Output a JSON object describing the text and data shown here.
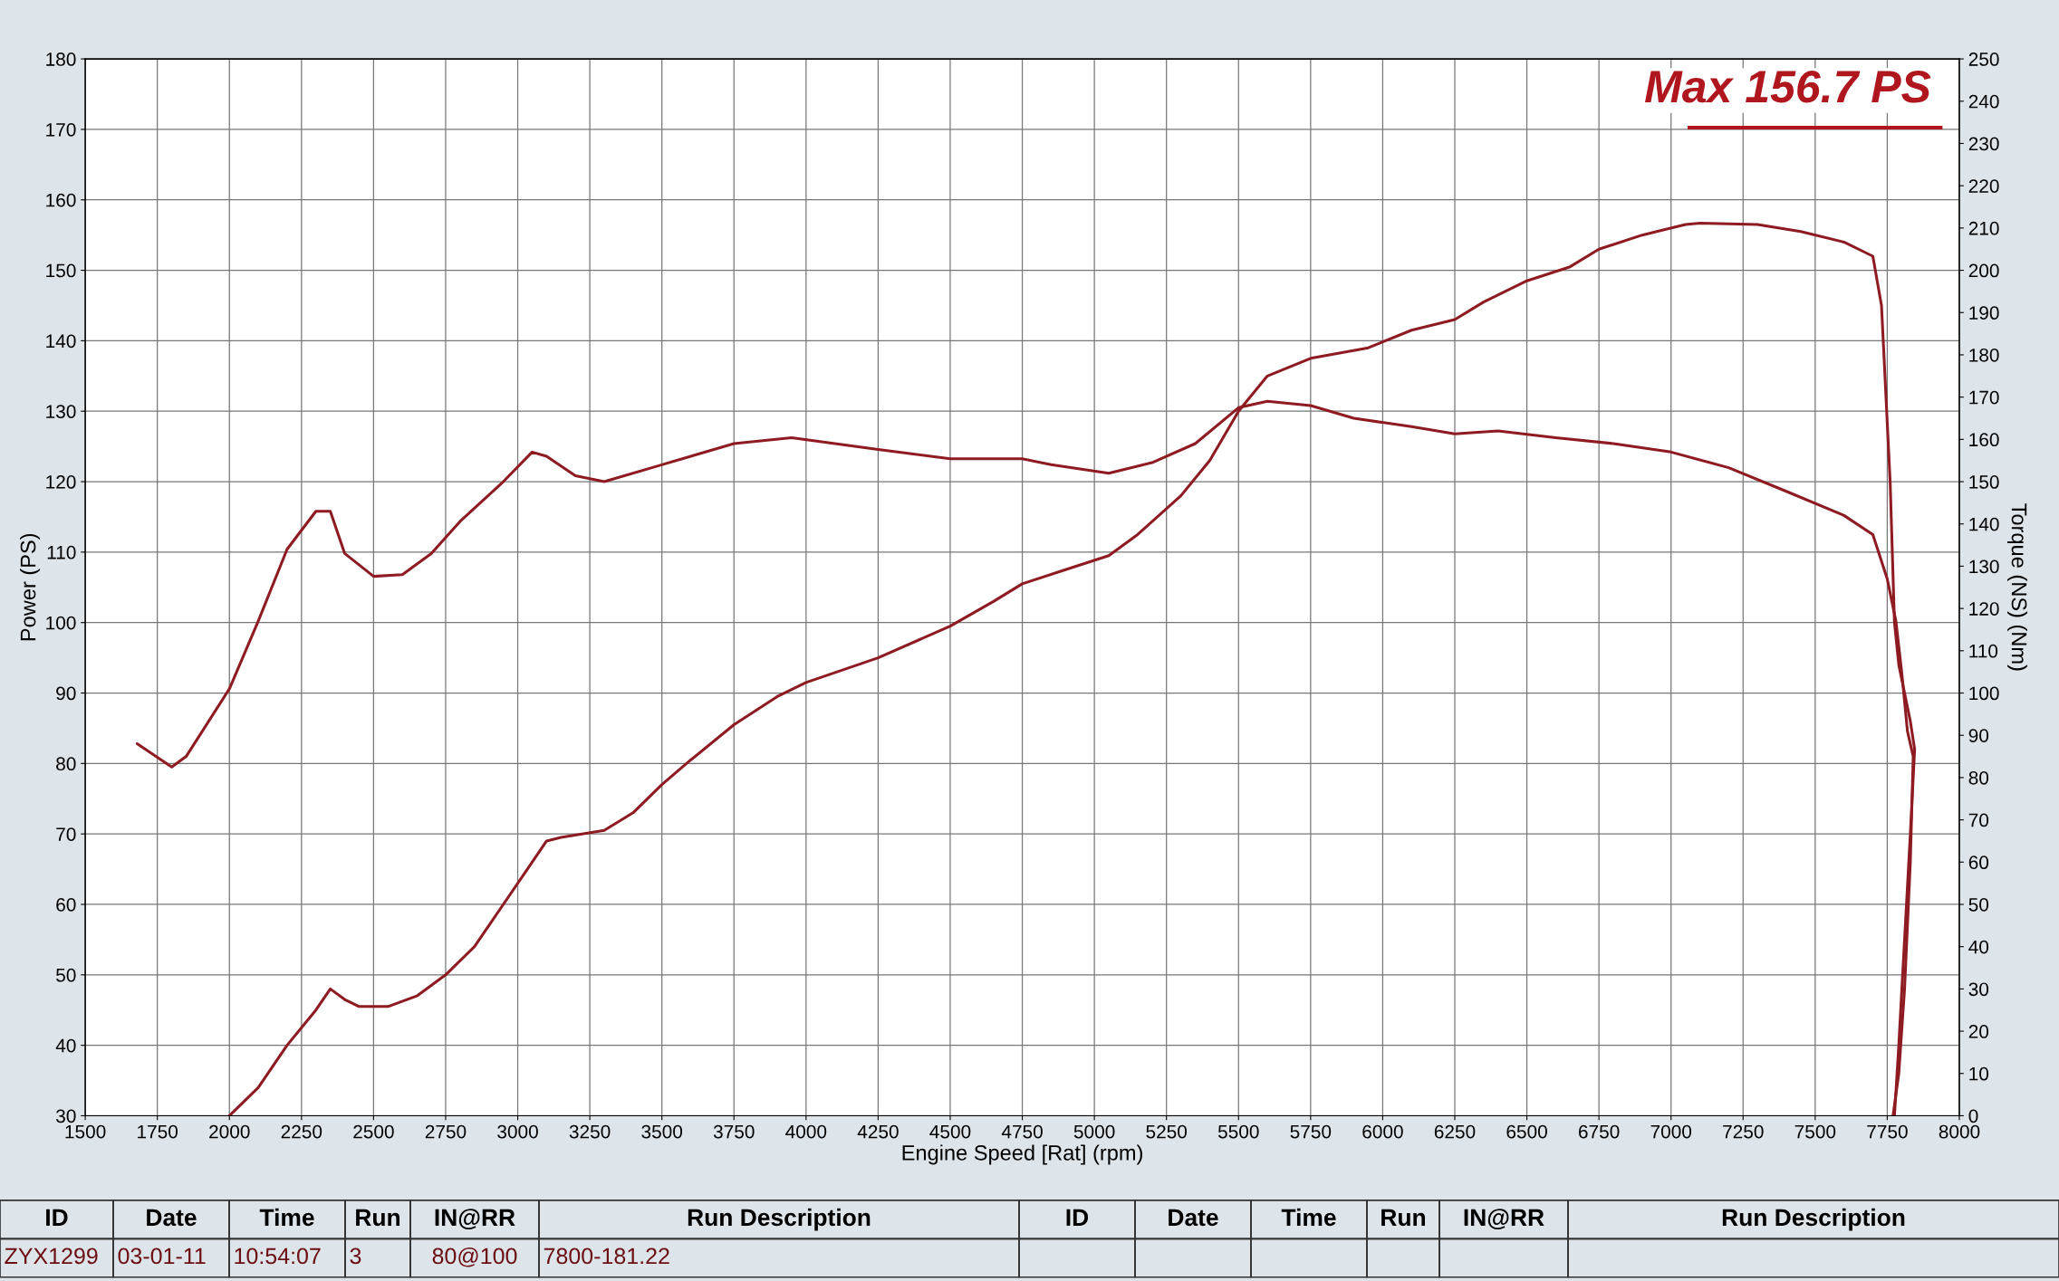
{
  "chart_data": {
    "type": "line",
    "xlabel": "Engine Speed [Rat] (rpm)",
    "ylabel": "Power (PS)",
    "y2label": "Torque (NS) (Nm)",
    "xlim": [
      1500,
      8000
    ],
    "xticks": [
      1500,
      1750,
      2000,
      2250,
      2500,
      2750,
      3000,
      3250,
      3500,
      3750,
      4000,
      4250,
      4500,
      4750,
      5000,
      5250,
      5500,
      5750,
      6000,
      6250,
      6500,
      6750,
      7000,
      7250,
      7500,
      7750,
      8000
    ],
    "ylim": [
      30,
      180
    ],
    "yticks": [
      30,
      40,
      50,
      60,
      70,
      80,
      90,
      100,
      110,
      120,
      130,
      140,
      150,
      160,
      170,
      180
    ],
    "y2lim": [
      0,
      250
    ],
    "y2ticks": [
      0,
      10,
      20,
      30,
      40,
      50,
      60,
      70,
      80,
      90,
      100,
      110,
      120,
      130,
      140,
      150,
      160,
      170,
      180,
      190,
      200,
      210,
      220,
      230,
      240,
      250
    ],
    "grid": true,
    "series": [
      {
        "color": "#8e1b22",
        "x": [
          2000,
          2100,
          2200,
          2300,
          2350,
          2400,
          2450,
          2550,
          2650,
          2750,
          2850,
          2950,
          3050,
          3100,
          3150,
          3300,
          3400,
          3500,
          3600,
          3750,
          3900,
          4000,
          4250,
          4500,
          4650,
          4750,
          4900,
          5050,
          5150,
          5300,
          5400,
          5500,
          5600,
          5750,
          5950,
          6100,
          6250,
          6350,
          6500,
          6650,
          6750,
          6900,
          7050,
          7100,
          7300,
          7450,
          7600,
          7700,
          7730,
          7760,
          7775,
          7790,
          7810,
          7830,
          7845,
          7830,
          7810,
          7790,
          7775
        ],
        "values": [
          30,
          34,
          40,
          45,
          48,
          46.5,
          45.5,
          45.5,
          47,
          50,
          54,
          60,
          66,
          69,
          69.5,
          70.5,
          73,
          77,
          80.5,
          85.5,
          89.5,
          91.5,
          95,
          99.5,
          103,
          105.5,
          107.5,
          109.5,
          112.5,
          118,
          123,
          130,
          135,
          137.5,
          139,
          141.5,
          143,
          145.5,
          148.5,
          150.5,
          153,
          155,
          156.5,
          156.7,
          156.5,
          155.5,
          154,
          152,
          145,
          120,
          100,
          94,
          90,
          86,
          82,
          70,
          55,
          40,
          30
        ]
      },
      {
        "color": "#8e1b22",
        "axis": "y2",
        "x": [
          1680,
          1800,
          1850,
          2000,
          2100,
          2200,
          2300,
          2350,
          2400,
          2500,
          2600,
          2700,
          2800,
          2950,
          3050,
          3100,
          3200,
          3300,
          3500,
          3750,
          3950,
          4250,
          4500,
          4750,
          4850,
          5050,
          5200,
          5350,
          5500,
          5600,
          5750,
          5900,
          6100,
          6250,
          6400,
          6600,
          6800,
          7000,
          7200,
          7400,
          7600,
          7700,
          7750,
          7780,
          7800,
          7820,
          7840,
          7830,
          7810,
          7790,
          7770
        ],
        "values": [
          88,
          82.5,
          85,
          101,
          117,
          134,
          143,
          143,
          133,
          127.6,
          128,
          133,
          140.6,
          150,
          157,
          156,
          151.4,
          150,
          154,
          159,
          160.4,
          157.6,
          155.4,
          155.4,
          154,
          152,
          154.5,
          159,
          167.5,
          169,
          168,
          165,
          163,
          161.3,
          162,
          160.4,
          159,
          157,
          153.3,
          147.7,
          142,
          137.5,
          127,
          117,
          105,
          91,
          85,
          60,
          30,
          10,
          0
        ]
      }
    ],
    "annotations": [
      "Max 156.7 PS",
      "ID",
      "Date",
      "Time",
      "Run",
      "IN@RR",
      "Run Description",
      "ID",
      "Date",
      "Time",
      "Run",
      "IN@RR",
      "Run Description",
      "ZYX1299",
      "03-01-11",
      "10:54:07",
      "3",
      "80@100",
      "7800-181.22"
    ]
  }
}
